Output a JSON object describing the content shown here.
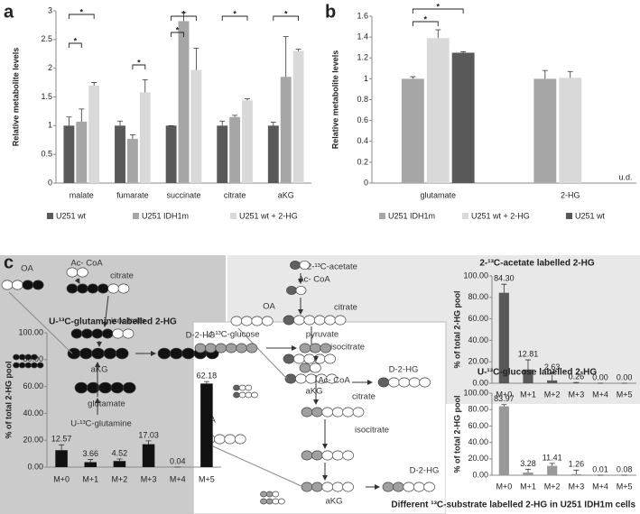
{
  "panel_labels": [
    "a",
    "b",
    "c"
  ],
  "chart_data": [
    {
      "type": "bar",
      "ylabel": "Relative metabolite levels",
      "categories": [
        "malate",
        "fumarate",
        "succinate",
        "citrate",
        "aKG"
      ],
      "series": [
        {
          "name": "U251 wt",
          "color": "#595959",
          "values": [
            1,
            1,
            1,
            1,
            1
          ],
          "errors": [
            0.15,
            0.08,
            0,
            0.08,
            0.06
          ]
        },
        {
          "name": "U251 IDH1m",
          "color": "#a6a6a6",
          "values": [
            1.07,
            0.77,
            2.82,
            1.15,
            1.85
          ],
          "errors": [
            0.22,
            0.07,
            0.15,
            0.03,
            0.7
          ]
        },
        {
          "name": "U251 wt + 2-HG",
          "color": "#d9d9d9",
          "values": [
            1.7,
            1.58,
            1.97,
            1.44,
            2.3
          ],
          "errors": [
            0.05,
            0.22,
            0.38,
            0.03,
            0.03
          ]
        }
      ],
      "ylim": [
        0,
        3
      ],
      "yticks": [
        0,
        0.5,
        1,
        1.5,
        2,
        2.5,
        3
      ],
      "annotations": [
        "*",
        "*",
        "*",
        "*",
        "*",
        "*",
        "*"
      ]
    },
    {
      "type": "bar",
      "ylabel": "Relative metabolite levels",
      "categories": [
        "glutamate",
        "2-HG"
      ],
      "series": [
        {
          "name": "U251 IDH1m",
          "color": "#a6a6a6",
          "values": [
            1.0,
            1.0
          ],
          "errors": [
            0.02,
            0.08
          ]
        },
        {
          "name": "U251 wt + 2-HG",
          "color": "#d9d9d9",
          "values": [
            1.39,
            1.01
          ],
          "errors": [
            0.08,
            0.06
          ]
        },
        {
          "name": "U251 wt",
          "color": "#595959",
          "values": [
            1.25,
            null
          ],
          "errors": [
            0.01,
            null
          ]
        }
      ],
      "ylim": [
        0,
        1.6
      ],
      "yticks": [
        0,
        0.2,
        0.4,
        0.6,
        0.8,
        1,
        1.2,
        1.4,
        1.6
      ],
      "annotations": [
        "*",
        "*"
      ],
      "note": "u.d."
    },
    {
      "type": "bar",
      "title": "U-¹³C-glutamine labelled 2-HG",
      "ylabel": "% of total 2-HG pool",
      "categories": [
        "M+0",
        "M+1",
        "M+2",
        "M+3",
        "M+4",
        "M+5"
      ],
      "values": [
        12.57,
        3.66,
        4.52,
        17.03,
        0.04,
        62.18
      ],
      "errors": [
        4,
        2,
        1.5,
        2.5,
        0,
        1.5
      ],
      "color": "#111111",
      "ylim": [
        0,
        100
      ],
      "yticks": [
        {
          "value": 0,
          "label": "0.00"
        },
        {
          "value": 20,
          "label": "20.00"
        },
        {
          "value": 40,
          "label": "40.00"
        },
        {
          "value": 60,
          "label": "60.00"
        },
        {
          "value": 80,
          "label": "80.00"
        },
        {
          "value": 100,
          "label": "100.00"
        }
      ]
    },
    {
      "type": "bar",
      "title": "2-¹³C-acetate labelled 2-HG",
      "ylabel": "% of total 2-HG pool",
      "categories": [
        "M+0",
        "M+1",
        "M+2",
        "M+3",
        "M+4",
        "M+5"
      ],
      "values": [
        84.3,
        12.81,
        2.63,
        0.26,
        0,
        0
      ],
      "value_labels": [
        "84.30",
        "12.81",
        "2.63",
        "0.26",
        "0.00",
        "0.00"
      ],
      "errors": [
        8,
        9,
        7,
        0.5,
        0,
        0
      ],
      "color": "#595959",
      "ylim": [
        0,
        100
      ],
      "yticks": [
        {
          "value": 0,
          "label": "0.00"
        },
        {
          "value": 20,
          "label": "20.00"
        },
        {
          "value": 40,
          "label": "40.00"
        },
        {
          "value": 60,
          "label": "60.00"
        },
        {
          "value": 80,
          "label": "80.00"
        },
        {
          "value": 100,
          "label": "100.00"
        }
      ]
    },
    {
      "type": "bar",
      "title": "U-¹³C-glucose labelled 2-HG",
      "ylabel": "% of total 2-HG pool",
      "categories": [
        "M+0",
        "M+1",
        "M+2",
        "M+3",
        "M+4",
        "M+5"
      ],
      "values": [
        83.97,
        3.28,
        11.41,
        1.26,
        0.01,
        0.08
      ],
      "errors": [
        2,
        4,
        3,
        5,
        0,
        0
      ],
      "color": "#999999",
      "ylim": [
        0,
        100
      ],
      "yticks": [
        {
          "value": 0,
          "label": "0.00"
        },
        {
          "value": 20,
          "label": "20.00"
        },
        {
          "value": 40,
          "label": "40.00"
        },
        {
          "value": 60,
          "label": "60.00"
        },
        {
          "value": 80,
          "label": "80.00"
        },
        {
          "value": 100,
          "label": "100.00"
        }
      ]
    }
  ],
  "diagrams": {
    "glutamine": [
      "OA",
      "Ac- CoA",
      "citrate",
      "isocitrate",
      "aKG",
      "D-2-HG",
      "glutamate",
      "U-¹³C-glutamine"
    ],
    "acetate": [
      "2-¹³C-acetate",
      "Ac- CoA",
      "OA",
      "citrate",
      "isocitrate",
      "aKG",
      "D-2-HG"
    ],
    "glucose": [
      "U-¹³C-glucose",
      "pyruvate",
      "Ac- CoA",
      "OA",
      "citrate",
      "isocitrate",
      "aKG",
      "D-2-HG"
    ]
  },
  "caption": "Different ¹³C-substrate labelled 2-HG in U251 IDH1m cells"
}
